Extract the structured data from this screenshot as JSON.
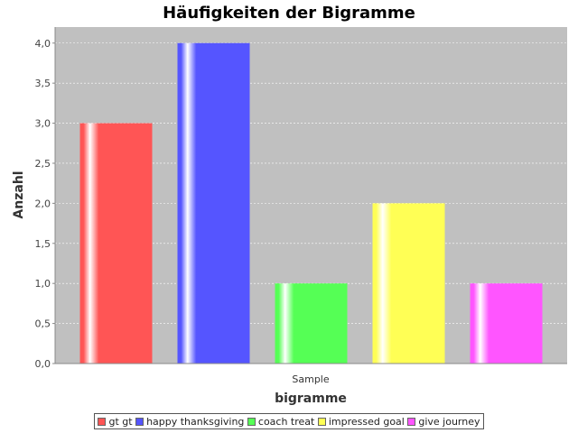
{
  "chart_data": {
    "type": "bar",
    "title": "Häufigkeiten der Bigramme",
    "xlabel": "bigramme",
    "ylabel": "Anzahl",
    "categories": [
      "Sample"
    ],
    "series": [
      {
        "name": "gt gt",
        "values": [
          3
        ],
        "color": "#ff5555"
      },
      {
        "name": "happy thanksgiving",
        "values": [
          4
        ],
        "color": "#5555ff"
      },
      {
        "name": "coach treat",
        "values": [
          1
        ],
        "color": "#55ff55"
      },
      {
        "name": "impressed goal",
        "values": [
          2
        ],
        "color": "#ffff55"
      },
      {
        "name": "give journey",
        "values": [
          1
        ],
        "color": "#ff55ff"
      }
    ],
    "ylim": [
      0,
      4.2
    ],
    "yticks": [
      "0,0",
      "0,5",
      "1,0",
      "1,5",
      "2,0",
      "2,5",
      "3,0",
      "3,5",
      "4,0"
    ],
    "grid": true,
    "legend_position": "bottom",
    "plot_background": "#c0c0c0"
  }
}
